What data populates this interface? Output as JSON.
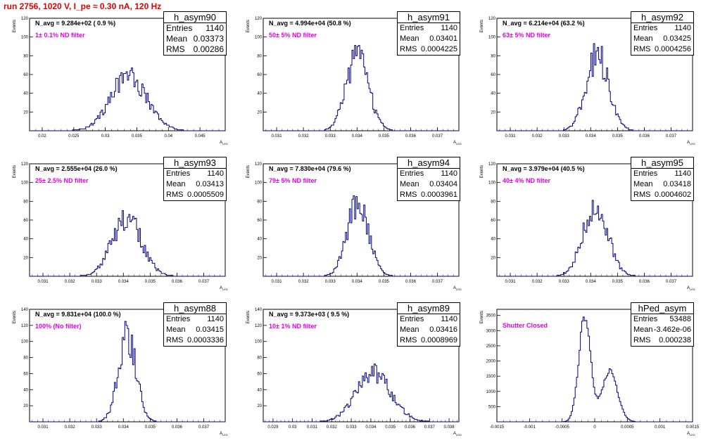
{
  "title": "run 2756,  1020 V, I_pe ≈ 0.30 nA, 120 Hz",
  "colors": {
    "title": "#e00000",
    "annotation": "#e600e6",
    "histogram": "#000080"
  },
  "chart_data": [
    {
      "type": "histogram",
      "name": "h_asym90",
      "stats": {
        "entries": "1140",
        "mean": "0.03373",
        "rms": "0.00286"
      },
      "n_avg": "N_avg = 9.284e+02 ( 0.9 %)",
      "annotation": "1± 0.1% ND filter",
      "ylabel": "Events",
      "xlabel": "A_LED",
      "xlim": [
        0.018,
        0.049
      ],
      "ylim": [
        0,
        120
      ],
      "xticks": [
        0.02,
        0.025,
        0.03,
        0.035,
        0.04,
        0.045
      ],
      "xtick_labels": [
        "0.02",
        "0.025",
        "0.03",
        "0.035",
        "0.04",
        "0.045"
      ],
      "yticks": [
        20,
        40,
        60,
        80,
        100,
        120
      ],
      "dist": {
        "mean": 0.03373,
        "sigma": 0.00286,
        "peak": 58,
        "lo": 0.0245,
        "hi": 0.0425
      }
    },
    {
      "type": "histogram",
      "name": "h_asym91",
      "stats": {
        "entries": "1140",
        "mean": "0.03401",
        "rms": "0.0004225"
      },
      "n_avg": "N_avg = 4.994e+04 (50.8 %)",
      "annotation": "50± 5% ND filter",
      "ylabel": "Events",
      "xlabel": "A_LED",
      "xlim": [
        0.0305,
        0.0378
      ],
      "ylim": [
        0,
        120
      ],
      "xticks": [
        0.031,
        0.032,
        0.033,
        0.034,
        0.035,
        0.036,
        0.037
      ],
      "xtick_labels": [
        "0.031",
        "0.032",
        "0.033",
        "0.034",
        "0.035",
        "0.036",
        "0.037"
      ],
      "yticks": [
        20,
        40,
        60,
        80,
        100,
        120
      ],
      "dist": {
        "mean": 0.03401,
        "sigma": 0.0004225,
        "peak": 78,
        "lo": 0.0328,
        "hi": 0.0353
      }
    },
    {
      "type": "histogram",
      "name": "h_asym92",
      "stats": {
        "entries": "1140",
        "mean": "0.03425",
        "rms": "0.0004256"
      },
      "n_avg": "N_avg = 6.214e+04 (63.2 %)",
      "annotation": "63± 5% ND filter",
      "ylabel": "Events",
      "xlabel": "A_LED",
      "xlim": [
        0.0305,
        0.0378
      ],
      "ylim": [
        0,
        120
      ],
      "xticks": [
        0.031,
        0.032,
        0.033,
        0.034,
        0.035,
        0.036,
        0.037
      ],
      "xtick_labels": [
        "0.031",
        "0.032",
        "0.033",
        "0.034",
        "0.035",
        "0.036",
        "0.037"
      ],
      "yticks": [
        20,
        40,
        60,
        80,
        100,
        120
      ],
      "dist": {
        "mean": 0.03425,
        "sigma": 0.0004256,
        "peak": 80,
        "lo": 0.033,
        "hi": 0.0357
      }
    },
    {
      "type": "histogram",
      "name": "h_asym93",
      "stats": {
        "entries": "1140",
        "mean": "0.03413",
        "rms": "0.0005509"
      },
      "n_avg": "N_avg = 2.555e+04 (26.0 %)",
      "annotation": "25± 2.5% ND filter",
      "ylabel": "Events",
      "xlabel": "A_LED",
      "xlim": [
        0.0305,
        0.0378
      ],
      "ylim": [
        0,
        120
      ],
      "xticks": [
        0.031,
        0.032,
        0.033,
        0.034,
        0.035,
        0.036,
        0.037
      ],
      "xtick_labels": [
        "0.031",
        "0.032",
        "0.033",
        "0.034",
        "0.035",
        "0.036",
        "0.037"
      ],
      "yticks": [
        20,
        40,
        60,
        80,
        100,
        120
      ],
      "dist": {
        "mean": 0.03413,
        "sigma": 0.0005509,
        "peak": 62,
        "lo": 0.0323,
        "hi": 0.0359
      }
    },
    {
      "type": "histogram",
      "name": "h_asym94",
      "stats": {
        "entries": "1140",
        "mean": "0.03404",
        "rms": "0.0003961"
      },
      "n_avg": "N_avg = 7.830e+04 (79.6 %)",
      "annotation": "79± 5% ND filter",
      "ylabel": "Events",
      "xlabel": "A_LED",
      "xlim": [
        0.0305,
        0.0378
      ],
      "ylim": [
        0,
        120
      ],
      "xticks": [
        0.031,
        0.032,
        0.033,
        0.034,
        0.035,
        0.036,
        0.037
      ],
      "xtick_labels": [
        "0.031",
        "0.032",
        "0.033",
        "0.034",
        "0.035",
        "0.036",
        "0.037"
      ],
      "yticks": [
        20,
        40,
        60,
        80,
        100,
        120
      ],
      "dist": {
        "mean": 0.03404,
        "sigma": 0.0003961,
        "peak": 80,
        "lo": 0.0328,
        "hi": 0.0353
      }
    },
    {
      "type": "histogram",
      "name": "h_asym95",
      "stats": {
        "entries": "1140",
        "mean": "0.03418",
        "rms": "0.0004602"
      },
      "n_avg": "N_avg = 3.979e+04 (40.5 %)",
      "annotation": "40± 4% ND filter",
      "ylabel": "Events",
      "xlabel": "A_LED",
      "xlim": [
        0.0305,
        0.0378
      ],
      "ylim": [
        0,
        120
      ],
      "xticks": [
        0.031,
        0.032,
        0.033,
        0.034,
        0.035,
        0.036,
        0.037
      ],
      "xtick_labels": [
        "0.031",
        "0.032",
        "0.033",
        "0.034",
        "0.035",
        "0.036",
        "0.037"
      ],
      "yticks": [
        20,
        40,
        60,
        80,
        100,
        120
      ],
      "dist": {
        "mean": 0.03418,
        "sigma": 0.0004602,
        "peak": 78,
        "lo": 0.0327,
        "hi": 0.0357
      }
    },
    {
      "type": "histogram",
      "name": "h_asym88",
      "stats": {
        "entries": "1140",
        "mean": "0.03415",
        "rms": "0.0003336"
      },
      "n_avg": "N_avg = 9.831e+04 (100.0 %)",
      "annotation": "100% (No filter)",
      "ylabel": "Events",
      "xlabel": "A_LED",
      "xlim": [
        0.0305,
        0.0378
      ],
      "ylim": [
        0,
        140
      ],
      "xticks": [
        0.031,
        0.032,
        0.033,
        0.034,
        0.035,
        0.036,
        0.037
      ],
      "xtick_labels": [
        "0.031",
        "0.032",
        "0.033",
        "0.034",
        "0.035",
        "0.036",
        "0.037"
      ],
      "yticks": [
        20,
        40,
        60,
        80,
        100,
        120,
        140
      ],
      "dist": {
        "mean": 0.03415,
        "sigma": 0.0003336,
        "peak": 105,
        "lo": 0.0331,
        "hi": 0.0352
      }
    },
    {
      "type": "histogram",
      "name": "h_asym89",
      "stats": {
        "entries": "1140",
        "mean": "0.03416",
        "rms": "0.0008969"
      },
      "n_avg": "N_avg = 9.373e+03 ( 9.5 %)",
      "annotation": "10± 1% ND filter",
      "ylabel": "Events",
      "xlabel": "A_LED",
      "xlim": [
        0.0285,
        0.0385
      ],
      "ylim": [
        0,
        140
      ],
      "xticks": [
        0.029,
        0.03,
        0.031,
        0.032,
        0.033,
        0.034,
        0.035,
        0.036,
        0.037,
        0.038
      ],
      "xtick_labels": [
        "0.029",
        "0.03",
        "0.031",
        "0.032",
        "0.033",
        "0.034",
        "0.035",
        "0.036",
        "0.037",
        "0.038"
      ],
      "yticks": [
        20,
        40,
        60,
        80,
        100,
        120,
        140
      ],
      "dist": {
        "mean": 0.03416,
        "sigma": 0.0008969,
        "peak": 60,
        "lo": 0.0314,
        "hi": 0.0372
      }
    },
    {
      "type": "histogram",
      "name": "hPed_asym",
      "stats": {
        "entries": "53488",
        "mean": "-3.462e-06",
        "rms": "0.000238"
      },
      "annotation": "Shutter Closed",
      "ylabel": "Events",
      "xlabel": "A_LED",
      "xlim": [
        -0.0015,
        0.0015
      ],
      "ylim": [
        0,
        3700
      ],
      "xticks": [
        -0.0015,
        -0.001,
        -0.0005,
        0,
        0.0005,
        0.001,
        0.0015
      ],
      "xtick_labels": [
        "-0.0015",
        "-0.001",
        "-0.0005",
        "0",
        "0.0005",
        "0.001",
        "0.0015"
      ],
      "yticks": [
        500,
        1000,
        1500,
        2000,
        2500,
        3000,
        3500
      ],
      "bimodal": [
        {
          "mean": -0.000155,
          "sigma": 9e-05,
          "peak": 3450
        },
        {
          "mean": 0.00023,
          "sigma": 0.00012,
          "peak": 1650
        }
      ],
      "lo": -0.00062,
      "hi": 0.00062
    }
  ]
}
